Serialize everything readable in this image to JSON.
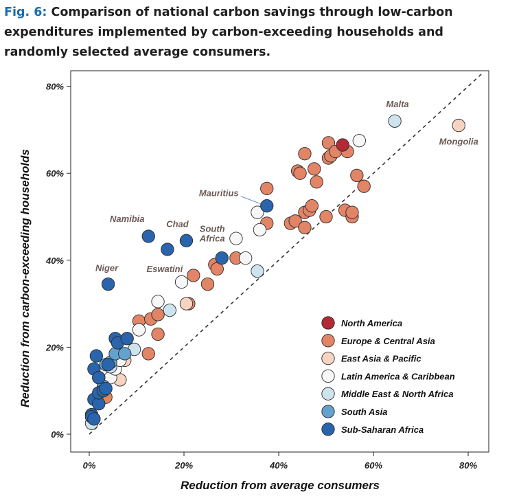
{
  "caption": {
    "fig_label": "Fig. 6:",
    "text": "Comparison of national carbon savings through low-carbon expenditures implemented by carbon-exceeding households and randomly selected average consumers."
  },
  "colors": {
    "North America": "#b22a35",
    "Europe & Central Asia": "#e28466",
    "East Asia & Pacific": "#f7d4c2",
    "Latin America & Caribbean": "#f7f7f7",
    "Middle East & North Africa": "#cde3ed",
    "South Asia": "#63a2ce",
    "Sub-Saharan Africa": "#2a64ad"
  },
  "chart_data": {
    "type": "scatter",
    "title": "",
    "xlabel": "Reduction from average consumers",
    "ylabel": "Reduction from carbon-exceeding households",
    "xlim": [
      -3,
      84
    ],
    "ylim": [
      -4,
      82
    ],
    "xticks": [
      0,
      20,
      40,
      60,
      80
    ],
    "yticks": [
      0,
      20,
      40,
      60,
      80
    ],
    "xtick_labels": [
      "0%",
      "20%",
      "40%",
      "60%",
      "80%"
    ],
    "ytick_labels": [
      "0%",
      "20%",
      "40%",
      "60%",
      "80%"
    ],
    "reference_line": "y = x (dashed)",
    "legend_position": "bottom-right",
    "legend": [
      "North America",
      "Europe & Central Asia",
      "East Asia & Pacific",
      "Latin America & Caribbean",
      "Middle East & North Africa",
      "South Asia",
      "Sub-Saharan Africa"
    ],
    "series": [
      {
        "name": "Europe & Central Asia",
        "points": [
          [
            3.5,
            8.5
          ],
          [
            12.5,
            18.5
          ],
          [
            10.5,
            26
          ],
          [
            13,
            26.5
          ],
          [
            14.5,
            27.5
          ],
          [
            14.5,
            23
          ],
          [
            21,
            30
          ],
          [
            22,
            36.5
          ],
          [
            25,
            34.5
          ],
          [
            26.5,
            39
          ],
          [
            27,
            38
          ],
          [
            31,
            40.5
          ],
          [
            37.5,
            48.5
          ],
          [
            37.5,
            56.5
          ],
          [
            42.5,
            48.5
          ],
          [
            43.5,
            49
          ],
          [
            44,
            60.5
          ],
          [
            44.5,
            60
          ],
          [
            45.5,
            47.5
          ],
          [
            45.5,
            51
          ],
          [
            45.5,
            64.5
          ],
          [
            46.5,
            51.5
          ],
          [
            47,
            52.5
          ],
          [
            47.5,
            61
          ],
          [
            48,
            58
          ],
          [
            50,
            50
          ],
          [
            50.5,
            63.5
          ],
          [
            50.5,
            67
          ],
          [
            51,
            64
          ],
          [
            52,
            65
          ],
          [
            54,
            51.5
          ],
          [
            54.5,
            65
          ],
          [
            55.5,
            50
          ],
          [
            55.5,
            51
          ],
          [
            56.5,
            59.5
          ],
          [
            58,
            57
          ]
        ]
      },
      {
        "name": "North America",
        "points": [
          [
            53.5,
            66.5
          ]
        ]
      },
      {
        "name": "East Asia & Pacific",
        "points": [
          [
            6.5,
            12.5
          ],
          [
            7.5,
            17
          ],
          [
            20.5,
            30
          ],
          [
            78,
            71
          ]
        ]
      },
      {
        "name": "Latin America & Caribbean",
        "points": [
          [
            3,
            11
          ],
          [
            4.5,
            13
          ],
          [
            5.5,
            15
          ],
          [
            6.5,
            17
          ],
          [
            10.5,
            24
          ],
          [
            14.5,
            30.5
          ],
          [
            19.5,
            35
          ],
          [
            31,
            45
          ],
          [
            33,
            40.5
          ],
          [
            35.5,
            51
          ],
          [
            36,
            47
          ],
          [
            57,
            67.5
          ]
        ]
      },
      {
        "name": "Middle East & North Africa",
        "points": [
          [
            0.5,
            2.5
          ],
          [
            4.5,
            15.5
          ],
          [
            9.5,
            19.5
          ],
          [
            17,
            28.5
          ],
          [
            35.5,
            37.5
          ],
          [
            64.5,
            72
          ]
        ]
      },
      {
        "name": "South Asia",
        "points": [
          [
            2,
            13
          ],
          [
            3,
            11
          ],
          [
            3.5,
            16
          ],
          [
            4.5,
            16.5
          ],
          [
            5.5,
            18.5
          ],
          [
            7.5,
            18.5
          ]
        ]
      },
      {
        "name": "Sub-Saharan Africa",
        "points": [
          [
            0.5,
            4.5
          ],
          [
            0.5,
            4
          ],
          [
            1,
            3.5
          ],
          [
            1,
            8
          ],
          [
            1,
            15
          ],
          [
            1.5,
            18
          ],
          [
            2,
            7
          ],
          [
            2,
            9.5
          ],
          [
            2,
            13
          ],
          [
            3,
            10
          ],
          [
            3.5,
            10.5
          ],
          [
            4,
            34.5
          ],
          [
            4,
            16
          ],
          [
            5.5,
            22
          ],
          [
            6,
            21
          ],
          [
            8,
            22
          ],
          [
            12.5,
            45.5
          ],
          [
            16.5,
            42.5
          ],
          [
            20.5,
            44.5
          ],
          [
            28,
            40.5
          ],
          [
            37.5,
            52.5
          ]
        ]
      }
    ],
    "annotations": [
      {
        "label": "Malta",
        "x": 64.5,
        "y": 72
      },
      {
        "label": "Mongolia",
        "x": 78,
        "y": 71
      },
      {
        "label": "Mauritius",
        "x": 37.5,
        "y": 52.5
      },
      {
        "label": "Namibia",
        "x": 12.5,
        "y": 45.5
      },
      {
        "label": "Chad",
        "x": 20.5,
        "y": 44.5
      },
      {
        "label": "South Africa",
        "x": 28,
        "y": 40.5
      },
      {
        "label": "Eswatini",
        "x": 16.5,
        "y": 42.5
      },
      {
        "label": "Niger",
        "x": 4,
        "y": 34.5
      }
    ]
  }
}
